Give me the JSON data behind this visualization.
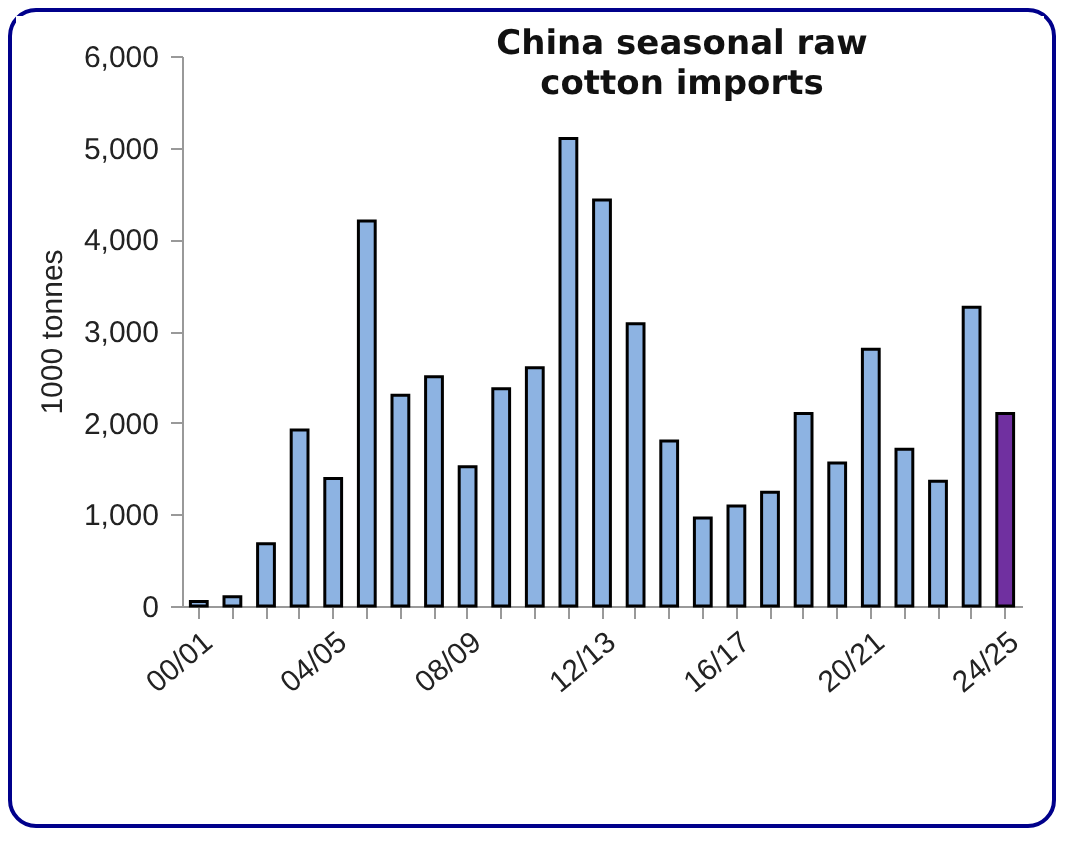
{
  "chart_data": {
    "type": "bar",
    "title": "China seasonal raw cotton imports",
    "ylabel": "1000 tonnes",
    "categories": [
      "00/01",
      null,
      null,
      null,
      "04/05",
      null,
      null,
      null,
      "08/09",
      null,
      null,
      null,
      "12/13",
      null,
      null,
      null,
      "16/17",
      null,
      null,
      null,
      "20/21",
      null,
      null,
      null,
      "24/25"
    ],
    "values": [
      50,
      100,
      680,
      1920,
      1390,
      4200,
      2300,
      2500,
      1520,
      2370,
      2600,
      5100,
      4430,
      3080,
      1800,
      960,
      1090,
      1240,
      2100,
      1560,
      2800,
      1710,
      1360,
      3260,
      2100
    ],
    "colors": [
      "#8db3e2",
      "#8db3e2",
      "#8db3e2",
      "#8db3e2",
      "#8db3e2",
      "#8db3e2",
      "#8db3e2",
      "#8db3e2",
      "#8db3e2",
      "#8db3e2",
      "#8db3e2",
      "#8db3e2",
      "#8db3e2",
      "#8db3e2",
      "#8db3e2",
      "#8db3e2",
      "#8db3e2",
      "#8db3e2",
      "#8db3e2",
      "#8db3e2",
      "#8db3e2",
      "#8db3e2",
      "#8db3e2",
      "#8db3e2",
      "#7030a0"
    ],
    "ylim": [
      0,
      6000
    ],
    "yticks": [
      0,
      {
        "value": 1000,
        "label": "1,000"
      },
      {
        "value": 2000,
        "label": "2,000"
      },
      {
        "value": 3000,
        "label": "3,000"
      },
      {
        "value": 4000,
        "label": "4,000"
      },
      {
        "value": 5000,
        "label": "5,000"
      },
      {
        "value": 6000,
        "label": "6,000"
      }
    ],
    "grid": false
  }
}
